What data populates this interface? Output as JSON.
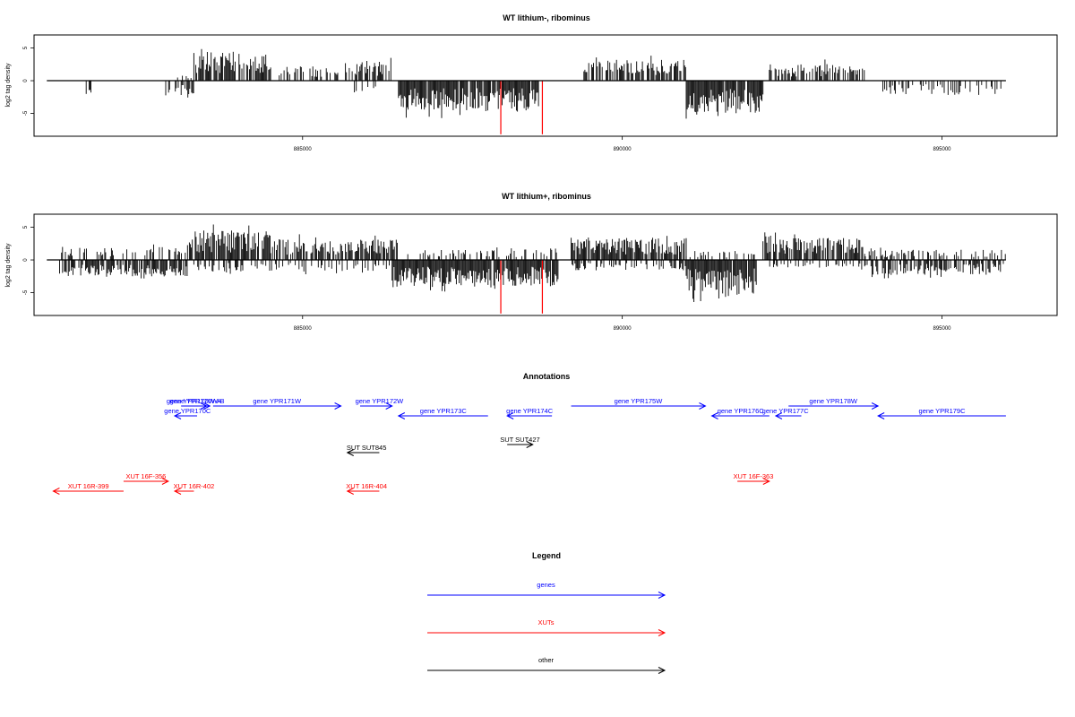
{
  "chart_data": [
    {
      "type": "bar",
      "title": "WT lithium-, ribominus",
      "ylabel": "log2 tag density",
      "xlim": [
        880800,
        896800
      ],
      "ylim": [
        -8.5,
        7
      ],
      "xticks": [
        885000,
        890000,
        895000
      ],
      "xtick_labels": [
        "885000",
        "890000",
        "895000"
      ],
      "yticks": [
        5,
        0,
        -5
      ],
      "ytick_labels": [
        "5",
        "0",
        "-5"
      ],
      "baseline": [
        881000,
        896000
      ],
      "segments": [
        {
          "from": 881600,
          "to": 881700,
          "sign": -1,
          "amp": 2.3,
          "density": 0.6
        },
        {
          "from": 882800,
          "to": 883300,
          "sign": -1,
          "amp": 2.6,
          "density": 0.4
        },
        {
          "from": 883000,
          "to": 883300,
          "sign": 1,
          "amp": 1.5,
          "density": 0.3
        },
        {
          "from": 883300,
          "to": 884500,
          "sign": 1,
          "amp": 4.5,
          "density": 0.8
        },
        {
          "from": 884500,
          "to": 885900,
          "sign": 1,
          "amp": 2.2,
          "density": 0.4
        },
        {
          "from": 885900,
          "to": 886400,
          "sign": 1,
          "amp": 3.0,
          "density": 0.5
        },
        {
          "from": 885600,
          "to": 886200,
          "sign": -1,
          "amp": 1.8,
          "density": 0.2
        },
        {
          "from": 886500,
          "to": 888700,
          "sign": -1,
          "amp": 4.6,
          "density": 0.95
        },
        {
          "from": 889400,
          "to": 891000,
          "sign": 1,
          "amp": 3.2,
          "density": 0.7
        },
        {
          "from": 891000,
          "to": 892200,
          "sign": -1,
          "amp": 5.0,
          "density": 0.95
        },
        {
          "from": 892300,
          "to": 893800,
          "sign": 1,
          "amp": 2.6,
          "density": 0.55
        },
        {
          "from": 894000,
          "to": 896000,
          "sign": -1,
          "amp": 2.2,
          "density": 0.35
        }
      ],
      "highlight_x": [
        888100,
        888750
      ],
      "highlight_min": -8.2,
      "highlight_color": "#ff0000"
    },
    {
      "type": "bar",
      "title": "WT lithium+, ribominus",
      "ylabel": "log2 tag density",
      "xlim": [
        880800,
        896800
      ],
      "ylim": [
        -8.5,
        7
      ],
      "xticks": [
        885000,
        890000,
        895000
      ],
      "xtick_labels": [
        "885000",
        "890000",
        "895000"
      ],
      "yticks": [
        5,
        0,
        -5
      ],
      "ytick_labels": [
        "5",
        "0",
        "-5"
      ],
      "baseline": [
        881000,
        896000
      ],
      "segments": [
        {
          "from": 881200,
          "to": 883200,
          "sign": -1,
          "amp": 2.6,
          "density": 0.75
        },
        {
          "from": 881200,
          "to": 883200,
          "sign": 1,
          "amp": 2.0,
          "density": 0.35
        },
        {
          "from": 883200,
          "to": 884500,
          "sign": 1,
          "amp": 4.5,
          "density": 0.85
        },
        {
          "from": 883300,
          "to": 884600,
          "sign": -1,
          "amp": 1.8,
          "density": 0.4
        },
        {
          "from": 884500,
          "to": 886500,
          "sign": 1,
          "amp": 3.2,
          "density": 0.6
        },
        {
          "from": 884600,
          "to": 886400,
          "sign": -1,
          "amp": 1.8,
          "density": 0.3
        },
        {
          "from": 886400,
          "to": 889000,
          "sign": -1,
          "amp": 4.2,
          "density": 0.95
        },
        {
          "from": 886600,
          "to": 889000,
          "sign": 1,
          "amp": 1.6,
          "density": 0.3
        },
        {
          "from": 889200,
          "to": 891000,
          "sign": 1,
          "amp": 3.4,
          "density": 0.85
        },
        {
          "from": 889200,
          "to": 891000,
          "sign": -1,
          "amp": 1.6,
          "density": 0.4
        },
        {
          "from": 891000,
          "to": 892100,
          "sign": -1,
          "amp": 5.2,
          "density": 0.98
        },
        {
          "from": 891000,
          "to": 892100,
          "sign": 1,
          "amp": 1.4,
          "density": 0.3
        },
        {
          "from": 892200,
          "to": 893800,
          "sign": 1,
          "amp": 3.4,
          "density": 0.8
        },
        {
          "from": 892200,
          "to": 893800,
          "sign": -1,
          "amp": 1.2,
          "density": 0.3
        },
        {
          "from": 893800,
          "to": 896000,
          "sign": -1,
          "amp": 2.3,
          "density": 0.65
        },
        {
          "from": 893800,
          "to": 896000,
          "sign": 1,
          "amp": 1.6,
          "density": 0.3
        }
      ],
      "highlight_x": [
        888100,
        888750
      ],
      "highlight_min": -8.2,
      "highlight_color": "#ff0000"
    }
  ],
  "annotations": {
    "title": "Annotations",
    "colors": {
      "gene": "#0000ff",
      "xut": "#ff0000",
      "other": "#000000"
    },
    "features": [
      {
        "label": "gene YPR170W-A",
        "kind": "gene",
        "from": 883100,
        "to": 883500,
        "strand": "+",
        "row": 1,
        "label_x": 883300
      },
      {
        "label": "gene YPR170W-B",
        "kind": "gene",
        "from": 883150,
        "to": 883550,
        "strand": "+",
        "row": 1,
        "label_x": 883350
      },
      {
        "label": "gene YPR170C",
        "kind": "gene",
        "from": 883000,
        "to": 883350,
        "strand": "-",
        "row": 2,
        "label_x": 883200
      },
      {
        "label": "gene YPR171W",
        "kind": "gene",
        "from": 883600,
        "to": 885600,
        "strand": "+",
        "row": 1,
        "label_x": 884600
      },
      {
        "label": "gene YPR172W",
        "kind": "gene",
        "from": 885900,
        "to": 886400,
        "strand": "+",
        "row": 1,
        "label_x": 886200
      },
      {
        "label": "gene YPR173C",
        "kind": "gene",
        "from": 886500,
        "to": 887900,
        "strand": "-",
        "row": 2,
        "label_x": 887200
      },
      {
        "label": "gene YPR174C",
        "kind": "gene",
        "from": 888200,
        "to": 888900,
        "strand": "-",
        "row": 2,
        "label_x": 888550
      },
      {
        "label": "gene YPR175W",
        "kind": "gene",
        "from": 889200,
        "to": 891300,
        "strand": "+",
        "row": 1,
        "label_x": 890250
      },
      {
        "label": "gene YPR176C",
        "kind": "gene",
        "from": 891400,
        "to": 892300,
        "strand": "-",
        "row": 2,
        "label_x": 891850
      },
      {
        "label": "gene YPR177C",
        "kind": "gene",
        "from": 892400,
        "to": 892800,
        "strand": "-",
        "row": 2,
        "label_x": 892550
      },
      {
        "label": "gene YPR178W",
        "kind": "gene",
        "from": 892600,
        "to": 894000,
        "strand": "+",
        "row": 1,
        "label_x": 893300
      },
      {
        "label": "gene YPR179C",
        "kind": "gene",
        "from": 894000,
        "to": 896000,
        "strand": "-",
        "row": 2,
        "label_x": 895000
      },
      {
        "label": "SUT SUT845",
        "kind": "other",
        "from": 885700,
        "to": 886200,
        "strand": "-",
        "row": 3,
        "label_x": 886000
      },
      {
        "label": "SUT SUT427",
        "kind": "other",
        "from": 888200,
        "to": 888600,
        "strand": "+",
        "row": 4,
        "label_x": 888400
      },
      {
        "label": "XUT 16F-356",
        "kind": "xut",
        "from": 882200,
        "to": 882900,
        "strand": "+",
        "row": 5,
        "label_x": 882550
      },
      {
        "label": "XUT 16R-399",
        "kind": "xut",
        "from": 881100,
        "to": 882200,
        "strand": "-",
        "row": 6,
        "label_x": 881650
      },
      {
        "label": "XUT 16R-402",
        "kind": "xut",
        "from": 883000,
        "to": 883300,
        "strand": "-",
        "row": 6,
        "label_x": 883300
      },
      {
        "label": "XUT 16R-404",
        "kind": "xut",
        "from": 885700,
        "to": 886200,
        "strand": "-",
        "row": 6,
        "label_x": 886000
      },
      {
        "label": "XUT 16F-363",
        "kind": "xut",
        "from": 891800,
        "to": 892300,
        "strand": "+",
        "row": 5,
        "label_x": 892050
      }
    ]
  },
  "legend": {
    "title": "Legend",
    "items": [
      {
        "label": "genes",
        "color": "#0000ff"
      },
      {
        "label": "XUTs",
        "color": "#ff0000"
      },
      {
        "label": "other",
        "color": "#000000"
      }
    ]
  }
}
